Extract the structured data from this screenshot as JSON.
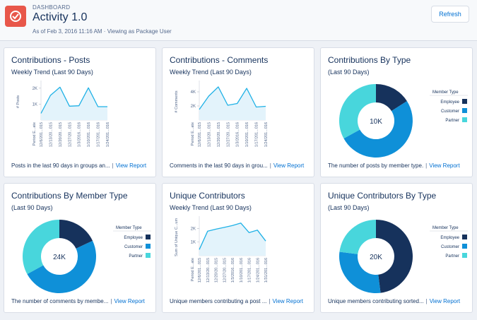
{
  "header": {
    "eyebrow": "DASHBOARD",
    "title": "Activity 1.0",
    "subtitle": "As of Feb 3, 2016 11:16 AM · Viewing as Package User",
    "refresh_label": "Refresh",
    "logo_icon": "gauge-icon",
    "logo_color": "#e8574a"
  },
  "colors": {
    "accent": "#0070d2",
    "employee": "#16325c",
    "customer": "#0f90d8",
    "partner": "#48d6dc",
    "area_fill": "#e3f3fb",
    "line": "#1fb1e6"
  },
  "footer_separator": "|",
  "view_report_label": "View Report",
  "cards": [
    {
      "title": "Contributions - Posts",
      "subtitle": "Weekly Trend (Last 90 Days)",
      "description": "Posts in the last 90 days in groups an...",
      "chart_data": {
        "type": "area",
        "ylabel": "# Posts",
        "xlabel": "Period E...ate",
        "yticks": [
          "1K",
          "2K"
        ],
        "ytick_values": [
          1000,
          2000
        ],
        "ylim": [
          0,
          2300
        ],
        "categories": [
          "12/6/201...015",
          "12/13/20...015",
          "12/20/20...015",
          "12/27/20...015",
          "1/3/2016...016",
          "1/10/201...016",
          "1/17/201...016",
          "1/24/201...016"
        ],
        "values": [
          420,
          1550,
          2060,
          870,
          900,
          2020,
          840,
          840
        ]
      }
    },
    {
      "title": "Contributions - Comments",
      "subtitle": "Weekly Trend (Last 90 Days)",
      "description": "Comments in the last 90 days in grou...",
      "chart_data": {
        "type": "area",
        "ylabel": "# Comments",
        "xlabel": "Period E...ate",
        "yticks": [
          "2K",
          "4K"
        ],
        "ytick_values": [
          2000,
          4000
        ],
        "ylim": [
          0,
          5200
        ],
        "categories": [
          "12/6/201...015",
          "12/13/20...015",
          "12/20/20...015",
          "12/27/20...015",
          "1/3/2016...016",
          "1/10/201...016",
          "1/17/201...016",
          "1/24/201...016"
        ],
        "values": [
          1500,
          3400,
          4700,
          2100,
          2350,
          4500,
          1850,
          1950
        ]
      }
    },
    {
      "title": "Contributions By Type",
      "subtitle": "(Last 90 Days)",
      "description": "The number of posts by member type.",
      "chart_data": {
        "type": "pie",
        "total_label": "10K",
        "legend_title": "Member Type",
        "categories": [
          "Employee",
          "Customer",
          "Partner"
        ],
        "values": [
          16,
          51,
          33
        ]
      }
    },
    {
      "title": "Contributions By Member Type",
      "subtitle": "(Last 90 Days)",
      "description": "The number of comments by membe...",
      "chart_data": {
        "type": "pie",
        "total_label": "24K",
        "legend_title": "Member Type",
        "categories": [
          "Employee",
          "Customer",
          "Partner"
        ],
        "values": [
          18,
          49,
          33
        ]
      }
    },
    {
      "title": "Unique Contributors",
      "subtitle": "Weekly Trend (Last 90 Days)",
      "description": "Unique members contributing a post ...",
      "chart_data": {
        "type": "area",
        "ylabel": "Sum of Unique C...um",
        "xlabel": "Period E...ate",
        "yticks": [
          "1K",
          "2K"
        ],
        "ytick_values": [
          1000,
          2000
        ],
        "ylim": [
          0,
          2700
        ],
        "categories": [
          "12/6/201...015",
          "12/13/20...015",
          "12/20/20...015",
          "12/27/20...015",
          "1/3/2016...016",
          "1/10/201...016",
          "1/17/201...016",
          "1/24/201...016",
          "1/31/201...016"
        ],
        "values": [
          450,
          1800,
          1950,
          2080,
          2220,
          2400,
          1700,
          1880,
          1080
        ]
      }
    },
    {
      "title": "Unique Contributors By Type",
      "subtitle": "(Last 90 Days)",
      "description": "Unique members contributing sorted...",
      "chart_data": {
        "type": "pie",
        "total_label": "20K",
        "legend_title": "Member Type",
        "categories": [
          "Employee",
          "Customer",
          "Partner"
        ],
        "values": [
          48,
          29,
          23
        ]
      }
    }
  ]
}
